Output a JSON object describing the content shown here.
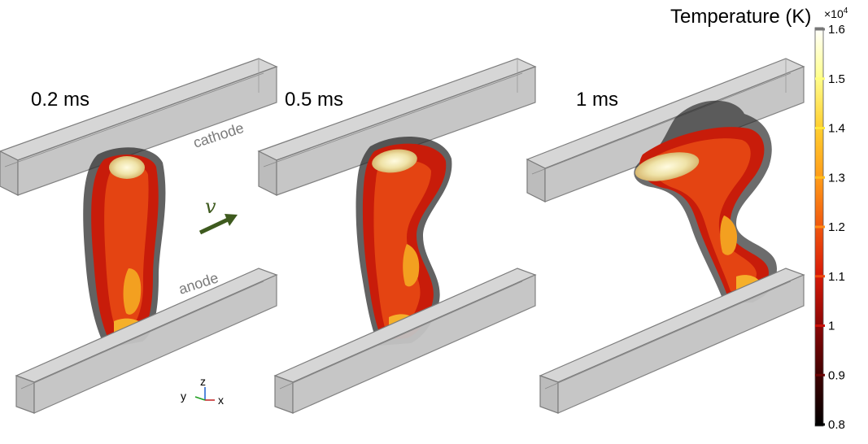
{
  "colorbar": {
    "title": "Temperature (K)",
    "multiplier": "×10",
    "exponent": "4",
    "ticks": [
      {
        "value": 1.6,
        "label": "1.6",
        "color": "#ffffff"
      },
      {
        "value": 1.5,
        "label": "1.5",
        "color": "#ffff7a"
      },
      {
        "value": 1.4,
        "label": "1.4",
        "color": "#ffe83a"
      },
      {
        "value": 1.3,
        "label": "1.3",
        "color": "#ffbf1e"
      },
      {
        "value": 1.2,
        "label": "1.2",
        "color": "#ff8c16"
      },
      {
        "value": 1.1,
        "label": "1.1",
        "color": "#ee4a0f"
      },
      {
        "value": 1.0,
        "label": "1",
        "color": "#c81008"
      },
      {
        "value": 0.9,
        "label": "0.9",
        "color": "#6a0404"
      },
      {
        "value": 0.8,
        "label": "0.8",
        "color": "#000000"
      }
    ],
    "range": [
      0.8,
      1.6
    ]
  },
  "panels": [
    {
      "time_label": "0.2 ms"
    },
    {
      "time_label": "0.5 ms"
    },
    {
      "time_label": "1 ms"
    }
  ],
  "electrode_labels": {
    "cathode": "cathode",
    "anode": "anode"
  },
  "velocity_symbol": "v",
  "axes_triad": {
    "z": "z",
    "y": "y",
    "x": "x"
  },
  "colors": {
    "electrode_fill": "#c9c9c9",
    "electrode_edge": "#7a7a7a",
    "arc_outer": "#333333",
    "arc_mid": "#c8200c",
    "arc_core": "#f0a020",
    "arc_hot": "#f4e8b0",
    "velocity_arrow": "#3e5a1e"
  }
}
